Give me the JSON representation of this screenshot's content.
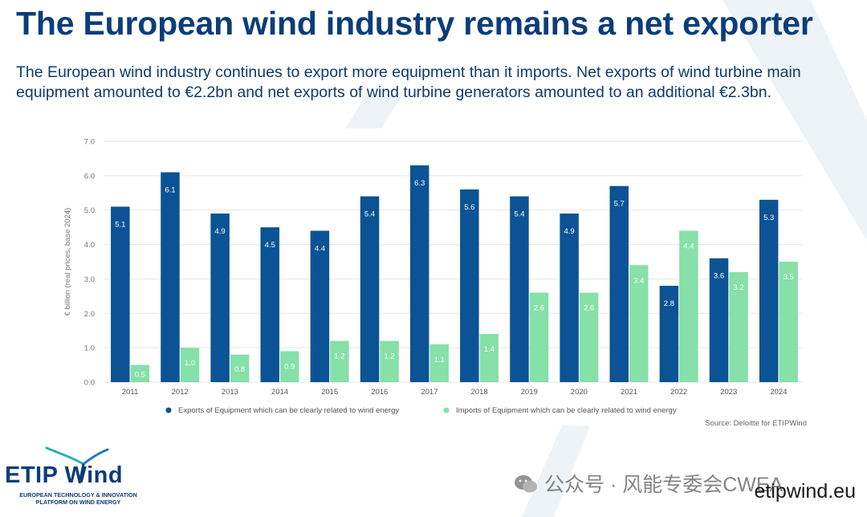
{
  "header": {
    "title": "The European wind industry remains a net exporter",
    "subtitle": "The European wind industry continues to export more equipment than it imports. Net exports of wind turbine main equipment amounted to €2.2bn and net exports of wind turbine generators amounted to an additional €2.3bn."
  },
  "colors": {
    "exports": "#0b5394",
    "imports": "#86e0a8",
    "title": "#0a3d7a",
    "grid": "#e6e6e6"
  },
  "chart_data": {
    "type": "bar",
    "categories": [
      "2011",
      "2012",
      "2013",
      "2014",
      "2015",
      "2016",
      "2017",
      "2018",
      "2019",
      "2020",
      "2021",
      "2022",
      "2023",
      "2024"
    ],
    "series": [
      {
        "name": "Exports of Equipment which can be clearly related to wind energy",
        "values": [
          5.1,
          6.1,
          4.9,
          4.5,
          4.4,
          5.4,
          6.3,
          5.6,
          5.4,
          4.9,
          5.7,
          2.8,
          3.6,
          5.3
        ]
      },
      {
        "name": "Imports of Equipment which can be clearly related to wind energy",
        "values": [
          0.5,
          1.0,
          0.8,
          0.9,
          1.2,
          1.2,
          1.1,
          1.4,
          2.6,
          2.6,
          3.4,
          4.4,
          3.2,
          3.5
        ]
      }
    ],
    "ylabel": "€ billion (real prices, base 2024)",
    "xlabel": "",
    "ylim": [
      0,
      7
    ],
    "yticks": [
      "0.0",
      "1.0",
      "2.0",
      "3.0",
      "4.0",
      "5.0",
      "6.0",
      "7.0"
    ],
    "legend_position": "bottom",
    "grid": true
  },
  "source": "Source: Deloitte for ETIPWind",
  "logo": {
    "name": "ETIP Wind",
    "tagline": "EUROPEAN TECHNOLOGY & INNOVATION PLATFORM ON WIND ENERGY"
  },
  "watermark": "公众号 · 风能专委会CWEA",
  "website": "etipwind.eu"
}
